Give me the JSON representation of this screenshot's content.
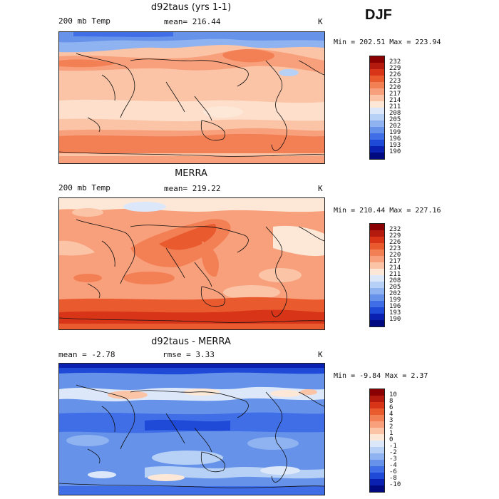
{
  "season": "DJF",
  "panels": [
    {
      "title": "d92taus (yrs 1-1)",
      "left_label": "200 mb Temp",
      "mean_text": "mean= 216.44",
      "unit": "K",
      "minmax": "Min = 202.51 Max = 223.94"
    },
    {
      "title": "MERRA",
      "left_label": "200 mb Temp",
      "mean_text": "mean= 219.22",
      "unit": "K",
      "minmax": "Min = 210.44 Max = 227.16"
    },
    {
      "title": "d92taus - MERRA",
      "left_label": "mean =   -2.78",
      "mean_text": "rmse =   3.33",
      "unit": "K",
      "minmax": "Min =  -9.84 Max =   2.37"
    }
  ],
  "colorbar_temp": {
    "labels": [
      "232",
      "229",
      "226",
      "223",
      "220",
      "217",
      "214",
      "211",
      "208",
      "205",
      "202",
      "199",
      "196",
      "193",
      "190"
    ],
    "colors": [
      "#8b0000",
      "#b51a0e",
      "#d83418",
      "#ea5a2f",
      "#f37f55",
      "#f8a07b",
      "#fbc4a6",
      "#fde8d8",
      "#dce8fa",
      "#b6d0f6",
      "#8fb2f0",
      "#6692ea",
      "#3f6ee6",
      "#1f4ad8",
      "#0a20b0",
      "#000a80"
    ]
  },
  "colorbar_diff": {
    "labels": [
      "10",
      "8",
      "6",
      "4",
      "3",
      "2",
      "1",
      "0",
      "-1",
      "-2",
      "-3",
      "-4",
      "-6",
      "-8",
      "-10"
    ],
    "colors": [
      "#8b0000",
      "#b51a0e",
      "#d83418",
      "#ea5a2f",
      "#f37f55",
      "#f8a07b",
      "#fbc4a6",
      "#fde8d8",
      "#dce8fa",
      "#b6d0f6",
      "#8fb2f0",
      "#6692ea",
      "#3f6ee6",
      "#1f4ad8",
      "#0a20b0",
      "#000a80"
    ]
  }
}
